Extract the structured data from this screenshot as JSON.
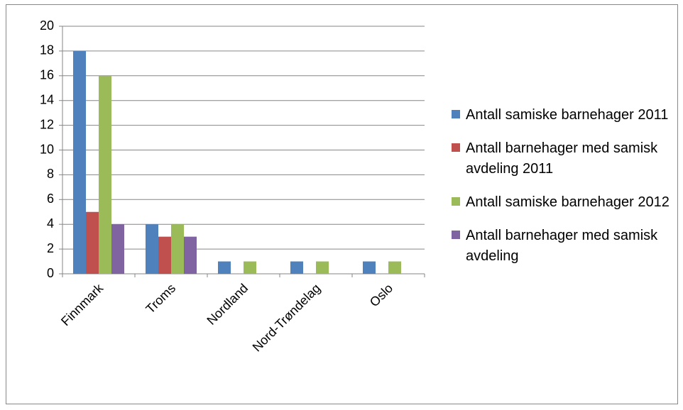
{
  "chart_data": {
    "type": "bar",
    "categories": [
      "Finnmark",
      "Troms",
      "Nordland",
      "Nord-Trøndelag",
      "Oslo"
    ],
    "series": [
      {
        "name": "Antall samiske barnehager 2011",
        "color": "#4f81bd",
        "values": [
          18,
          4,
          1,
          1,
          1
        ]
      },
      {
        "name": "Antall barnehager med samisk avdeling 2011",
        "color": "#c0504d",
        "values": [
          5,
          3,
          0,
          0,
          0
        ]
      },
      {
        "name": "Antall samiske barnehager 2012",
        "color": "#9bbb59",
        "values": [
          16,
          4,
          1,
          1,
          1
        ]
      },
      {
        "name": "Antall barnehager med samisk avdeling",
        "color": "#8064a2",
        "values": [
          4,
          3,
          0,
          0,
          0
        ]
      }
    ],
    "ylim": [
      0,
      20
    ],
    "yticks": [
      0,
      2,
      4,
      6,
      8,
      10,
      12,
      14,
      16,
      18,
      20
    ],
    "grid": true,
    "legend": "right"
  }
}
